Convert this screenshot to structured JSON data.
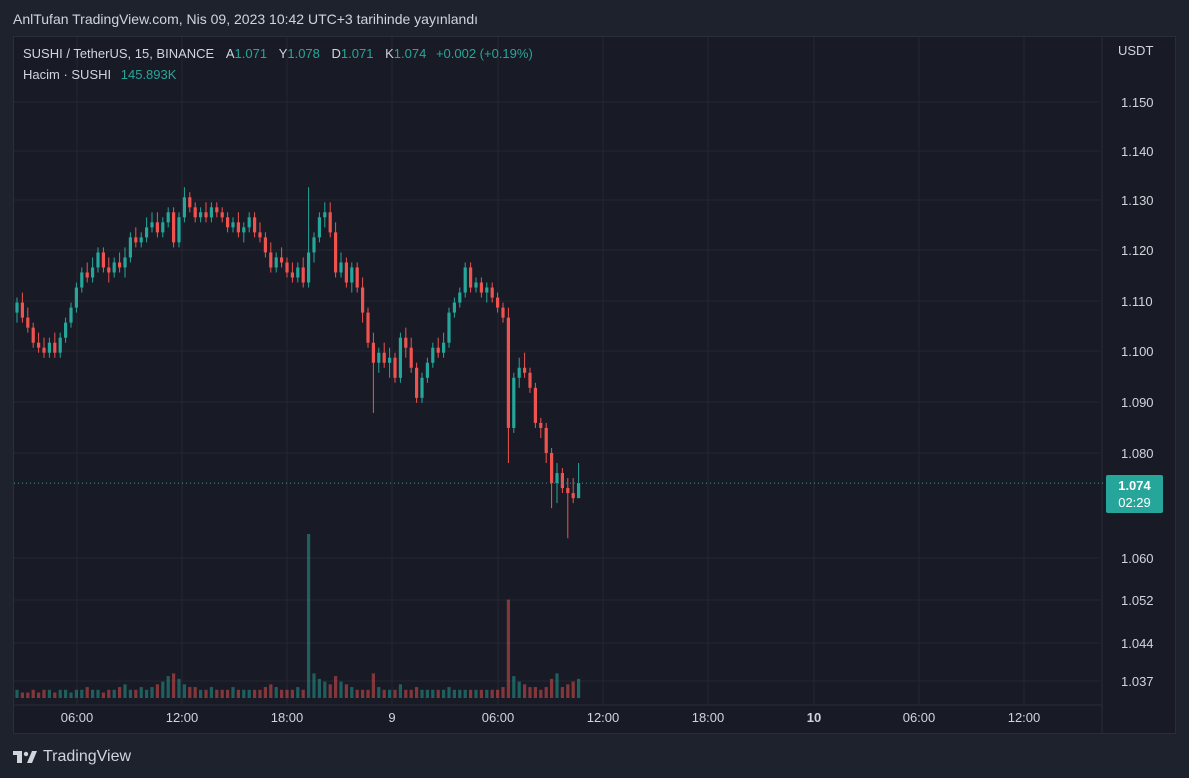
{
  "header": {
    "publish_line": "AnlTufan TradingView.com, Nis 09, 2023 10:42 UTC+3 tarihinde yayınlandı"
  },
  "legend": {
    "symbol": "SUSHI / TetherUS, 15, BINANCE",
    "open_label": "A",
    "open": "1.071",
    "high_label": "Y",
    "high": "1.078",
    "low_label": "D",
    "low": "1.071",
    "close_label": "K",
    "close": "1.074",
    "change": "+0.002 (+0.19%)",
    "volume_label": "Hacim · SUSHI",
    "volume": "145.893K"
  },
  "price_axis": {
    "unit": "USDT",
    "last_price": "1.074",
    "countdown": "02:29"
  },
  "footer": {
    "brand": "TradingView",
    "logo_icon": "tradingview-logo-icon"
  },
  "colors": {
    "up": "#26a69a",
    "down": "#ef5350",
    "background": "#181b25",
    "grid": "#242733",
    "text": "#d1d4dc"
  },
  "chart_data": {
    "type": "candlestick",
    "symbol": "SUSHI / TetherUS",
    "interval": "15",
    "exchange": "BINANCE",
    "y_ticks": [
      "1.150",
      "1.140",
      "1.130",
      "1.120",
      "1.110",
      "1.100",
      "1.090",
      "1.080",
      "1.060",
      "1.052",
      "1.044",
      "1.037"
    ],
    "x_ticks": [
      "06:00",
      "12:00",
      "18:00",
      "9",
      "06:00",
      "12:00",
      "18:00",
      "10",
      "06:00",
      "12:00"
    ],
    "x_ticks_bold": [
      "10"
    ],
    "last_price": 1.074,
    "grid": true,
    "candles": [
      [
        1.108,
        1.111,
        1.106,
        1.11
      ],
      [
        1.11,
        1.112,
        1.106,
        1.107
      ],
      [
        1.107,
        1.109,
        1.104,
        1.105
      ],
      [
        1.105,
        1.106,
        1.101,
        1.102
      ],
      [
        1.102,
        1.104,
        1.1,
        1.101
      ],
      [
        1.101,
        1.103,
        1.099,
        1.1
      ],
      [
        1.1,
        1.103,
        1.099,
        1.102
      ],
      [
        1.102,
        1.104,
        1.099,
        1.1
      ],
      [
        1.1,
        1.104,
        1.099,
        1.103
      ],
      [
        1.103,
        1.107,
        1.102,
        1.106
      ],
      [
        1.106,
        1.11,
        1.105,
        1.109
      ],
      [
        1.109,
        1.114,
        1.108,
        1.113
      ],
      [
        1.113,
        1.117,
        1.112,
        1.116
      ],
      [
        1.116,
        1.118,
        1.114,
        1.115
      ],
      [
        1.115,
        1.119,
        1.114,
        1.117
      ],
      [
        1.117,
        1.121,
        1.116,
        1.12
      ],
      [
        1.12,
        1.121,
        1.116,
        1.117
      ],
      [
        1.117,
        1.119,
        1.114,
        1.116
      ],
      [
        1.116,
        1.119,
        1.115,
        1.118
      ],
      [
        1.118,
        1.12,
        1.116,
        1.117
      ],
      [
        1.117,
        1.121,
        1.115,
        1.119
      ],
      [
        1.119,
        1.124,
        1.118,
        1.123
      ],
      [
        1.123,
        1.125,
        1.121,
        1.122
      ],
      [
        1.122,
        1.124,
        1.121,
        1.123
      ],
      [
        1.123,
        1.127,
        1.122,
        1.125
      ],
      [
        1.125,
        1.128,
        1.124,
        1.126
      ],
      [
        1.126,
        1.128,
        1.123,
        1.124
      ],
      [
        1.124,
        1.127,
        1.123,
        1.126
      ],
      [
        1.126,
        1.129,
        1.125,
        1.128
      ],
      [
        1.128,
        1.129,
        1.121,
        1.122
      ],
      [
        1.122,
        1.128,
        1.121,
        1.127
      ],
      [
        1.127,
        1.133,
        1.126,
        1.131
      ],
      [
        1.131,
        1.132,
        1.128,
        1.129
      ],
      [
        1.129,
        1.13,
        1.126,
        1.127
      ],
      [
        1.127,
        1.129,
        1.126,
        1.128
      ],
      [
        1.128,
        1.13,
        1.126,
        1.127
      ],
      [
        1.127,
        1.13,
        1.126,
        1.129
      ],
      [
        1.129,
        1.13,
        1.127,
        1.128
      ],
      [
        1.128,
        1.129,
        1.126,
        1.127
      ],
      [
        1.127,
        1.128,
        1.124,
        1.125
      ],
      [
        1.125,
        1.127,
        1.124,
        1.126
      ],
      [
        1.126,
        1.128,
        1.123,
        1.124
      ],
      [
        1.124,
        1.126,
        1.122,
        1.125
      ],
      [
        1.125,
        1.128,
        1.124,
        1.127
      ],
      [
        1.127,
        1.128,
        1.123,
        1.124
      ],
      [
        1.124,
        1.126,
        1.122,
        1.123
      ],
      [
        1.123,
        1.124,
        1.119,
        1.12
      ],
      [
        1.12,
        1.122,
        1.116,
        1.117
      ],
      [
        1.117,
        1.12,
        1.116,
        1.119
      ],
      [
        1.119,
        1.121,
        1.117,
        1.118
      ],
      [
        1.118,
        1.119,
        1.115,
        1.116
      ],
      [
        1.116,
        1.118,
        1.114,
        1.115
      ],
      [
        1.115,
        1.118,
        1.114,
        1.117
      ],
      [
        1.117,
        1.119,
        1.113,
        1.114
      ],
      [
        1.114,
        1.133,
        1.113,
        1.12
      ],
      [
        1.12,
        1.124,
        1.118,
        1.123
      ],
      [
        1.123,
        1.128,
        1.122,
        1.127
      ],
      [
        1.127,
        1.13,
        1.125,
        1.128
      ],
      [
        1.128,
        1.13,
        1.123,
        1.124
      ],
      [
        1.124,
        1.126,
        1.115,
        1.116
      ],
      [
        1.116,
        1.12,
        1.115,
        1.118
      ],
      [
        1.118,
        1.119,
        1.113,
        1.114
      ],
      [
        1.114,
        1.118,
        1.112,
        1.117
      ],
      [
        1.117,
        1.118,
        1.112,
        1.113
      ],
      [
        1.113,
        1.115,
        1.106,
        1.108
      ],
      [
        1.108,
        1.109,
        1.101,
        1.102
      ],
      [
        1.102,
        1.104,
        1.088,
        1.098
      ],
      [
        1.098,
        1.101,
        1.096,
        1.1
      ],
      [
        1.1,
        1.102,
        1.097,
        1.098
      ],
      [
        1.098,
        1.101,
        1.095,
        1.099
      ],
      [
        1.099,
        1.1,
        1.094,
        1.095
      ],
      [
        1.095,
        1.104,
        1.094,
        1.103
      ],
      [
        1.103,
        1.105,
        1.099,
        1.101
      ],
      [
        1.101,
        1.103,
        1.096,
        1.097
      ],
      [
        1.097,
        1.098,
        1.09,
        1.091
      ],
      [
        1.091,
        1.096,
        1.09,
        1.095
      ],
      [
        1.095,
        1.099,
        1.094,
        1.098
      ],
      [
        1.098,
        1.102,
        1.097,
        1.101
      ],
      [
        1.101,
        1.103,
        1.099,
        1.1
      ],
      [
        1.1,
        1.104,
        1.099,
        1.102
      ],
      [
        1.102,
        1.109,
        1.101,
        1.108
      ],
      [
        1.108,
        1.111,
        1.107,
        1.11
      ],
      [
        1.11,
        1.113,
        1.109,
        1.112
      ],
      [
        1.112,
        1.118,
        1.111,
        1.117
      ],
      [
        1.117,
        1.118,
        1.112,
        1.113
      ],
      [
        1.113,
        1.115,
        1.112,
        1.114
      ],
      [
        1.114,
        1.115,
        1.111,
        1.112
      ],
      [
        1.112,
        1.114,
        1.11,
        1.113
      ],
      [
        1.113,
        1.114,
        1.11,
        1.111
      ],
      [
        1.111,
        1.112,
        1.108,
        1.109
      ],
      [
        1.109,
        1.11,
        1.106,
        1.107
      ],
      [
        1.107,
        1.109,
        1.078,
        1.085
      ],
      [
        1.085,
        1.096,
        1.084,
        1.095
      ],
      [
        1.095,
        1.099,
        1.093,
        1.097
      ],
      [
        1.097,
        1.1,
        1.095,
        1.096
      ],
      [
        1.096,
        1.097,
        1.092,
        1.093
      ],
      [
        1.093,
        1.094,
        1.085,
        1.086
      ],
      [
        1.086,
        1.087,
        1.083,
        1.085
      ],
      [
        1.085,
        1.086,
        1.078,
        1.08
      ],
      [
        1.08,
        1.081,
        1.069,
        1.074
      ],
      [
        1.074,
        1.078,
        1.07,
        1.076
      ],
      [
        1.076,
        1.077,
        1.072,
        1.073
      ],
      [
        1.073,
        1.075,
        1.063,
        1.072
      ],
      [
        1.072,
        1.075,
        1.07,
        1.071
      ],
      [
        1.071,
        1.078,
        1.071,
        1.074
      ]
    ],
    "volumes": [
      3,
      2,
      2,
      3,
      2,
      3,
      3,
      2,
      3,
      3,
      2,
      3,
      3,
      4,
      3,
      3,
      2,
      3,
      3,
      4,
      5,
      3,
      3,
      4,
      3,
      4,
      5,
      6,
      8,
      9,
      7,
      5,
      4,
      4,
      3,
      3,
      4,
      3,
      3,
      3,
      4,
      3,
      3,
      3,
      3,
      3,
      4,
      5,
      4,
      3,
      3,
      3,
      4,
      3,
      60,
      9,
      7,
      6,
      5,
      8,
      6,
      5,
      4,
      3,
      3,
      3,
      9,
      4,
      3,
      3,
      3,
      5,
      3,
      3,
      4,
      3,
      3,
      3,
      3,
      3,
      4,
      3,
      3,
      3,
      3,
      3,
      3,
      3,
      3,
      3,
      4,
      36,
      8,
      6,
      5,
      4,
      4,
      3,
      4,
      7,
      9,
      4,
      5,
      6,
      7
    ]
  }
}
